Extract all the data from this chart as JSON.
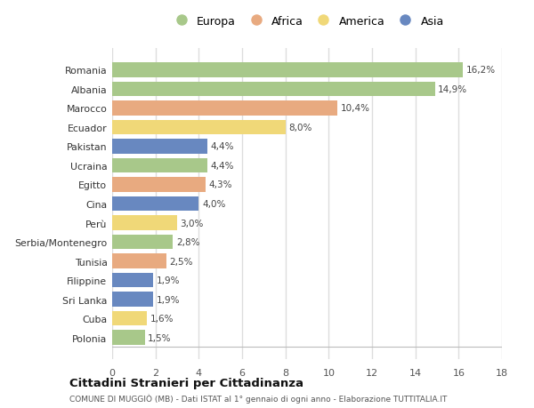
{
  "categories": [
    "Romania",
    "Albania",
    "Marocco",
    "Ecuador",
    "Pakistan",
    "Ucraina",
    "Egitto",
    "Cina",
    "Perù",
    "Serbia/Montenegro",
    "Tunisia",
    "Filippine",
    "Sri Lanka",
    "Cuba",
    "Polonia"
  ],
  "values": [
    16.2,
    14.9,
    10.4,
    8.0,
    4.4,
    4.4,
    4.3,
    4.0,
    3.0,
    2.8,
    2.5,
    1.9,
    1.9,
    1.6,
    1.5
  ],
  "labels": [
    "16,2%",
    "14,9%",
    "10,4%",
    "8,0%",
    "4,4%",
    "4,4%",
    "4,3%",
    "4,0%",
    "3,0%",
    "2,8%",
    "2,5%",
    "1,9%",
    "1,9%",
    "1,6%",
    "1,5%"
  ],
  "continents": [
    "Europa",
    "Europa",
    "Africa",
    "America",
    "Asia",
    "Europa",
    "Africa",
    "Asia",
    "America",
    "Europa",
    "Africa",
    "Asia",
    "Asia",
    "America",
    "Europa"
  ],
  "colors": {
    "Europa": "#a8c88a",
    "Africa": "#e8aa80",
    "America": "#f0d878",
    "Asia": "#6888c0"
  },
  "legend_order": [
    "Europa",
    "Africa",
    "America",
    "Asia"
  ],
  "title": "Cittadini Stranieri per Cittadinanza",
  "subtitle": "COMUNE DI MUGGIÒ (MB) - Dati ISTAT al 1° gennaio di ogni anno - Elaborazione TUTTITALIA.IT",
  "xlim": [
    0,
    18
  ],
  "xticks": [
    0,
    2,
    4,
    6,
    8,
    10,
    12,
    14,
    16,
    18
  ],
  "background_color": "#ffffff",
  "grid_color": "#e0e0e0"
}
